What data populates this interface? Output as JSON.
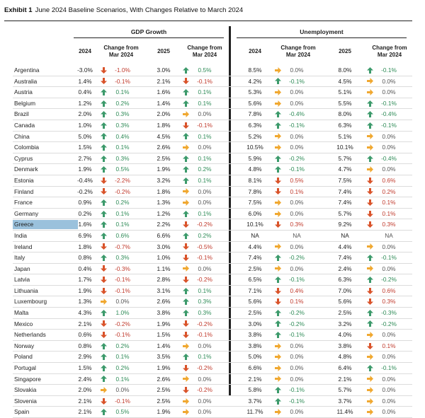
{
  "exhibit": {
    "label": "Exhibit 1",
    "title": "June 2024 Baseline Scenarios, With Changes Relative to March 2024"
  },
  "groups": {
    "gdp": "GDP Growth",
    "unemployment": "Unemployment"
  },
  "columns": {
    "y2024": "2024",
    "chg_line1": "Change from",
    "chg_line2": "Mar 2024",
    "y2025": "2025"
  },
  "colors": {
    "up": "#3c9a6b",
    "down": "#d9532a",
    "flat": "#f0a830",
    "highlight": "#9ac1dc"
  },
  "rows": [
    {
      "country": "Argentina",
      "g24": "-3.0%",
      "g24c": "-1.0%",
      "g25": "3.0%",
      "g25c": "0.5%",
      "u24": "8.5%",
      "u24c": "0.0%",
      "u25": "8.0%",
      "u25c": "-0.1%",
      "dir": [
        "down",
        "up",
        "flat",
        "up"
      ]
    },
    {
      "country": "Australia",
      "g24": "1.4%",
      "g24c": "-0.1%",
      "g25": "2.1%",
      "g25c": "-0.1%",
      "u24": "4.2%",
      "u24c": "-0.1%",
      "u25": "4.5%",
      "u25c": "0.0%",
      "dir": [
        "down",
        "down",
        "up",
        "flat"
      ]
    },
    {
      "country": "Austria",
      "g24": "0.4%",
      "g24c": "0.1%",
      "g25": "1.6%",
      "g25c": "0.1%",
      "u24": "5.3%",
      "u24c": "0.0%",
      "u25": "5.1%",
      "u25c": "0.0%",
      "dir": [
        "up",
        "up",
        "flat",
        "flat"
      ]
    },
    {
      "country": "Belgium",
      "g24": "1.2%",
      "g24c": "0.2%",
      "g25": "1.4%",
      "g25c": "0.1%",
      "u24": "5.6%",
      "u24c": "0.0%",
      "u25": "5.5%",
      "u25c": "-0.1%",
      "dir": [
        "up",
        "up",
        "flat",
        "up"
      ]
    },
    {
      "country": "Brazil",
      "g24": "2.0%",
      "g24c": "0.3%",
      "g25": "2.0%",
      "g25c": "0.0%",
      "u24": "7.8%",
      "u24c": "-0.4%",
      "u25": "8.0%",
      "u25c": "-0.4%",
      "dir": [
        "up",
        "flat",
        "up",
        "up"
      ]
    },
    {
      "country": "Canada",
      "g24": "1.0%",
      "g24c": "0.3%",
      "g25": "1.8%",
      "g25c": "-0.1%",
      "u24": "6.3%",
      "u24c": "-0.1%",
      "u25": "6.3%",
      "u25c": "-0.1%",
      "dir": [
        "up",
        "down",
        "up",
        "up"
      ]
    },
    {
      "country": "China",
      "g24": "5.0%",
      "g24c": "0.4%",
      "g25": "4.5%",
      "g25c": "0.1%",
      "u24": "5.2%",
      "u24c": "0.0%",
      "u25": "5.1%",
      "u25c": "0.0%",
      "dir": [
        "up",
        "up",
        "flat",
        "flat"
      ]
    },
    {
      "country": "Colombia",
      "g24": "1.5%",
      "g24c": "0.1%",
      "g25": "2.6%",
      "g25c": "0.0%",
      "u24": "10.5%",
      "u24c": "0.0%",
      "u25": "10.1%",
      "u25c": "0.0%",
      "dir": [
        "up",
        "flat",
        "flat",
        "flat"
      ]
    },
    {
      "country": "Cyprus",
      "g24": "2.7%",
      "g24c": "0.3%",
      "g25": "2.5%",
      "g25c": "0.1%",
      "u24": "5.9%",
      "u24c": "-0.2%",
      "u25": "5.7%",
      "u25c": "-0.4%",
      "dir": [
        "up",
        "up",
        "up",
        "up"
      ]
    },
    {
      "country": "Denmark",
      "g24": "1.9%",
      "g24c": "0.5%",
      "g25": "1.9%",
      "g25c": "0.2%",
      "u24": "4.8%",
      "u24c": "-0.1%",
      "u25": "4.7%",
      "u25c": "0.0%",
      "dir": [
        "up",
        "up",
        "up",
        "flat"
      ]
    },
    {
      "country": "Estonia",
      "g24": "-0.4%",
      "g24c": "-2.2%",
      "g25": "3.2%",
      "g25c": "0.1%",
      "u24": "8.1%",
      "u24c": "0.5%",
      "u25": "7.5%",
      "u25c": "0.6%",
      "dir": [
        "down",
        "up",
        "down",
        "down"
      ]
    },
    {
      "country": "Finland",
      "g24": "-0.2%",
      "g24c": "-0.2%",
      "g25": "1.8%",
      "g25c": "0.0%",
      "u24": "7.8%",
      "u24c": "0.1%",
      "u25": "7.4%",
      "u25c": "0.2%",
      "dir": [
        "down",
        "flat",
        "down",
        "down"
      ]
    },
    {
      "country": "France",
      "g24": "0.9%",
      "g24c": "0.2%",
      "g25": "1.3%",
      "g25c": "0.0%",
      "u24": "7.5%",
      "u24c": "0.0%",
      "u25": "7.4%",
      "u25c": "0.1%",
      "dir": [
        "up",
        "flat",
        "flat",
        "down"
      ]
    },
    {
      "country": "Germany",
      "g24": "0.2%",
      "g24c": "0.1%",
      "g25": "1.2%",
      "g25c": "0.1%",
      "u24": "6.0%",
      "u24c": "0.0%",
      "u25": "5.7%",
      "u25c": "0.1%",
      "dir": [
        "up",
        "up",
        "flat",
        "down"
      ]
    },
    {
      "country": "Greece",
      "g24": "1.6%",
      "g24c": "0.1%",
      "g25": "2.2%",
      "g25c": "-0.2%",
      "u24": "10.1%",
      "u24c": "0.3%",
      "u25": "9.2%",
      "u25c": "0.3%",
      "dir": [
        "up",
        "down",
        "down",
        "down"
      ],
      "highlight": true
    },
    {
      "country": "India",
      "g24": "6.9%",
      "g24c": "0.6%",
      "g25": "6.6%",
      "g25c": "0.2%",
      "u24": "NA",
      "u24c": "NA",
      "u25": "NA",
      "u25c": "NA",
      "dir": [
        "up",
        "up",
        "none",
        "none"
      ]
    },
    {
      "country": "Ireland",
      "g24": "1.8%",
      "g24c": "-0.7%",
      "g25": "3.0%",
      "g25c": "-0.5%",
      "u24": "4.4%",
      "u24c": "0.0%",
      "u25": "4.4%",
      "u25c": "0.0%",
      "dir": [
        "down",
        "down",
        "flat",
        "flat"
      ]
    },
    {
      "country": "Italy",
      "g24": "0.8%",
      "g24c": "0.3%",
      "g25": "1.0%",
      "g25c": "-0.1%",
      "u24": "7.4%",
      "u24c": "-0.2%",
      "u25": "7.4%",
      "u25c": "-0.1%",
      "dir": [
        "up",
        "down",
        "up",
        "up"
      ]
    },
    {
      "country": "Japan",
      "g24": "0.4%",
      "g24c": "-0.3%",
      "g25": "1.1%",
      "g25c": "0.0%",
      "u24": "2.5%",
      "u24c": "0.0%",
      "u25": "2.4%",
      "u25c": "0.0%",
      "dir": [
        "down",
        "flat",
        "flat",
        "flat"
      ]
    },
    {
      "country": "Latvia",
      "g24": "1.7%",
      "g24c": "-0.1%",
      "g25": "2.8%",
      "g25c": "-0.2%",
      "u24": "6.5%",
      "u24c": "-0.1%",
      "u25": "6.3%",
      "u25c": "-0.2%",
      "dir": [
        "down",
        "down",
        "up",
        "up"
      ]
    },
    {
      "country": "Lithuania",
      "g24": "1.9%",
      "g24c": "-0.1%",
      "g25": "3.1%",
      "g25c": "0.1%",
      "u24": "7.1%",
      "u24c": "0.4%",
      "u25": "7.0%",
      "u25c": "0.6%",
      "dir": [
        "down",
        "up",
        "down",
        "down"
      ]
    },
    {
      "country": "Luxembourg",
      "g24": "1.3%",
      "g24c": "0.0%",
      "g25": "2.6%",
      "g25c": "0.3%",
      "u24": "5.6%",
      "u24c": "0.1%",
      "u25": "5.6%",
      "u25c": "0.3%",
      "dir": [
        "flat",
        "up",
        "down",
        "down"
      ]
    },
    {
      "country": "Malta",
      "g24": "4.3%",
      "g24c": "1.0%",
      "g25": "3.8%",
      "g25c": "0.3%",
      "u24": "2.5%",
      "u24c": "-0.2%",
      "u25": "2.5%",
      "u25c": "-0.3%",
      "dir": [
        "up",
        "up",
        "up",
        "up"
      ]
    },
    {
      "country": "Mexico",
      "g24": "2.1%",
      "g24c": "-0.2%",
      "g25": "1.9%",
      "g25c": "-0.2%",
      "u24": "3.0%",
      "u24c": "-0.2%",
      "u25": "3.2%",
      "u25c": "-0.2%",
      "dir": [
        "down",
        "down",
        "up",
        "up"
      ]
    },
    {
      "country": "Netherlands",
      "g24": "0.6%",
      "g24c": "-0.1%",
      "g25": "1.5%",
      "g25c": "-0.1%",
      "u24": "3.8%",
      "u24c": "-0.1%",
      "u25": "4.0%",
      "u25c": "0.0%",
      "dir": [
        "down",
        "down",
        "up",
        "flat"
      ]
    },
    {
      "country": "Norway",
      "g24": "0.8%",
      "g24c": "0.2%",
      "g25": "1.4%",
      "g25c": "0.0%",
      "u24": "3.8%",
      "u24c": "0.0%",
      "u25": "3.8%",
      "u25c": "0.1%",
      "dir": [
        "up",
        "flat",
        "flat",
        "down"
      ]
    },
    {
      "country": "Poland",
      "g24": "2.9%",
      "g24c": "0.1%",
      "g25": "3.5%",
      "g25c": "0.1%",
      "u24": "5.0%",
      "u24c": "0.0%",
      "u25": "4.8%",
      "u25c": "0.0%",
      "dir": [
        "up",
        "up",
        "flat",
        "flat"
      ]
    },
    {
      "country": "Portugal",
      "g24": "1.5%",
      "g24c": "0.2%",
      "g25": "1.9%",
      "g25c": "-0.2%",
      "u24": "6.6%",
      "u24c": "0.0%",
      "u25": "6.4%",
      "u25c": "-0.1%",
      "dir": [
        "up",
        "down",
        "flat",
        "up"
      ]
    },
    {
      "country": "Singapore",
      "g24": "2.4%",
      "g24c": "0.1%",
      "g25": "2.6%",
      "g25c": "0.0%",
      "u24": "2.1%",
      "u24c": "0.0%",
      "u25": "2.1%",
      "u25c": "0.0%",
      "dir": [
        "up",
        "flat",
        "flat",
        "flat"
      ]
    },
    {
      "country": "Slovakia",
      "g24": "2.0%",
      "g24c": "0.0%",
      "g25": "2.5%",
      "g25c": "-0.2%",
      "u24": "5.8%",
      "u24c": "-0.1%",
      "u25": "5.7%",
      "u25c": "0.0%",
      "dir": [
        "flat",
        "down",
        "up",
        "flat"
      ]
    },
    {
      "country": "Slovenia",
      "g24": "2.1%",
      "g24c": "-0.1%",
      "g25": "2.5%",
      "g25c": "0.0%",
      "u24": "3.7%",
      "u24c": "-0.1%",
      "u25": "3.7%",
      "u25c": "0.0%",
      "dir": [
        "down",
        "flat",
        "up",
        "flat"
      ]
    },
    {
      "country": "Spain",
      "g24": "2.1%",
      "g24c": "0.5%",
      "g25": "1.9%",
      "g25c": "0.0%",
      "u24": "11.7%",
      "u24c": "0.0%",
      "u25": "11.4%",
      "u25c": "0.0%",
      "dir": [
        "up",
        "flat",
        "flat",
        "flat"
      ]
    }
  ]
}
